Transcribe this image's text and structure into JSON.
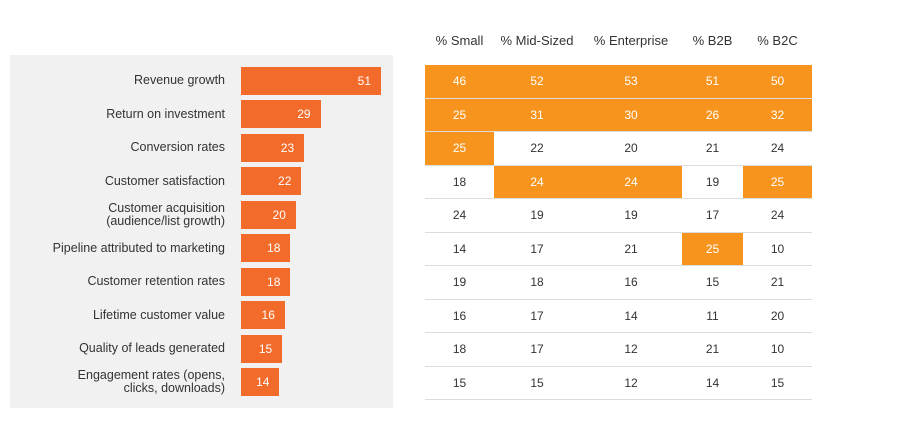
{
  "chart_data": {
    "type": "bar",
    "orientation": "horizontal",
    "color": "#f26b2a",
    "categories": [
      "Revenue growth",
      "Return on investment",
      "Conversion rates",
      "Customer satisfaction",
      "Customer acquisition\n(audience/list growth)",
      "Pipeline attributed to marketing",
      "Customer retention rates",
      "Lifetime customer value",
      "Quality of leads generated",
      "Engagement rates (opens,\nclicks, downloads)"
    ],
    "values": [
      51,
      29,
      23,
      22,
      20,
      18,
      18,
      16,
      15,
      14
    ]
  },
  "table": {
    "columns": [
      "% Small",
      "% Mid-Sized",
      "% Enterprise",
      "% B2B",
      "% B2C"
    ],
    "rows": [
      [
        "46",
        "52",
        "53",
        "51",
        "50"
      ],
      [
        "25",
        "31",
        "30",
        "26",
        "32"
      ],
      [
        "25",
        "22",
        "20",
        "21",
        "24"
      ],
      [
        "18",
        "24",
        "24",
        "19",
        "25"
      ],
      [
        "24",
        "19",
        "19",
        "17",
        "24"
      ],
      [
        "14",
        "17",
        "21",
        "25",
        "10"
      ],
      [
        "19",
        "18",
        "16",
        "15",
        "21"
      ],
      [
        "16",
        "17",
        "14",
        "11",
        "20"
      ],
      [
        "18",
        "17",
        "12",
        "21",
        "10"
      ],
      [
        "15",
        "15",
        "12",
        "14",
        "15"
      ]
    ],
    "highlighted": [
      [
        true,
        true,
        true,
        true,
        true
      ],
      [
        true,
        true,
        true,
        true,
        true
      ],
      [
        true,
        false,
        false,
        false,
        false
      ],
      [
        false,
        true,
        true,
        false,
        true
      ],
      [
        false,
        false,
        false,
        false,
        false
      ],
      [
        false,
        false,
        false,
        true,
        false
      ],
      [
        false,
        false,
        false,
        false,
        false
      ],
      [
        false,
        false,
        false,
        false,
        false
      ],
      [
        false,
        false,
        false,
        false,
        false
      ],
      [
        false,
        false,
        false,
        false,
        false
      ]
    ],
    "highlight_color": "#f7941d"
  }
}
